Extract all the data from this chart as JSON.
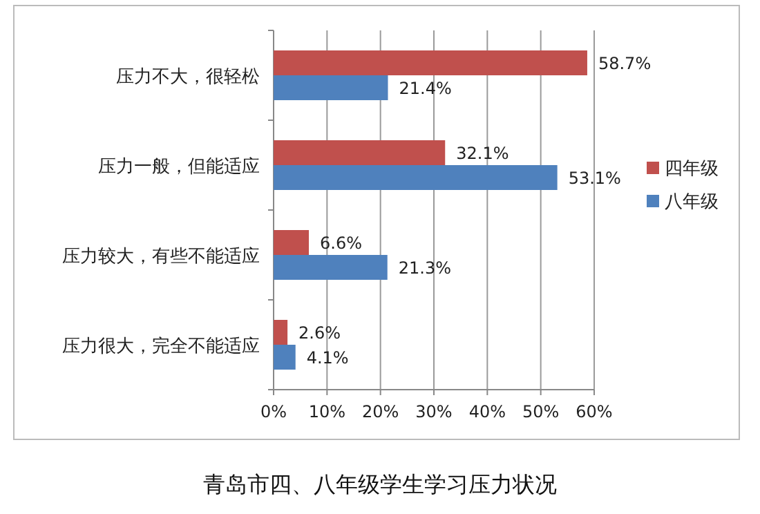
{
  "chart_data": {
    "type": "bar",
    "orientation": "horizontal",
    "title": "青岛市四、八年级学生学习压力状况",
    "categories": [
      "压力不大，很轻松",
      "压力一般，但能适应",
      "压力较大，有些不能适应",
      "压力很大，完全不能适应"
    ],
    "series": [
      {
        "name": "四年级",
        "color": "#c0504d",
        "values": [
          58.7,
          32.1,
          6.6,
          2.6
        ],
        "value_labels": [
          "58.7%",
          "32.1%",
          "6.6%",
          "2.6%"
        ]
      },
      {
        "name": "八年级",
        "color": "#4f81bd",
        "values": [
          21.4,
          53.1,
          21.3,
          4.1
        ],
        "value_labels": [
          "21.4%",
          "53.1%",
          "21.3%",
          "4.1%"
        ]
      }
    ],
    "xlim": [
      0,
      60
    ],
    "xticks": [
      {
        "value": 0,
        "label": "0%"
      },
      {
        "value": 10,
        "label": "10%"
      },
      {
        "value": 20,
        "label": "20%"
      },
      {
        "value": 30,
        "label": "30%"
      },
      {
        "value": 40,
        "label": "40%"
      },
      {
        "value": 50,
        "label": "50%"
      },
      {
        "value": 60,
        "label": "60%"
      }
    ],
    "grid": "x",
    "legend": "right"
  }
}
